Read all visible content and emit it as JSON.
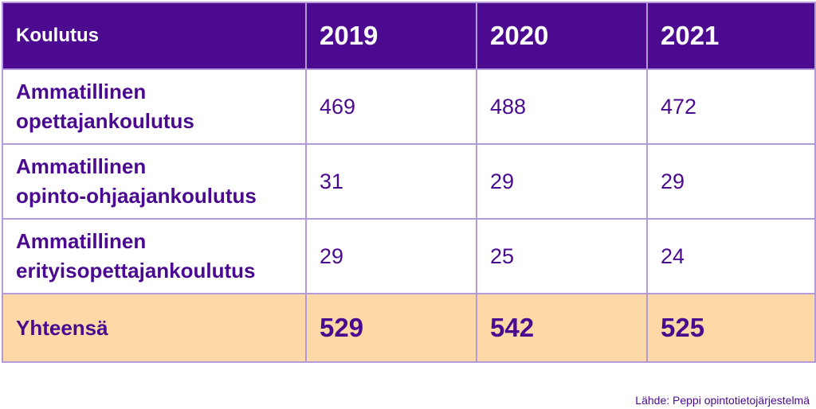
{
  "chart_data": {
    "type": "table",
    "columns": [
      "Koulutus",
      "2019",
      "2020",
      "2021"
    ],
    "rows": [
      {
        "label_line1": "Ammatillinen",
        "label_line2": "opettajankoulutus",
        "values": [
          "469",
          "488",
          "472"
        ]
      },
      {
        "label_line1": "Ammatillinen",
        "label_line2": "opinto-ohjaajankoulutus",
        "values": [
          "31",
          "29",
          "29"
        ]
      },
      {
        "label_line1": "Ammatillinen",
        "label_line2": "erityisopettajankoulutus",
        "values": [
          "29",
          "25",
          "24"
        ]
      }
    ],
    "total": {
      "label": "Yhteensä",
      "values": [
        "529",
        "542",
        "525"
      ]
    },
    "source": "Lähde: Peppi opintotietojärjestelmä",
    "colors": {
      "header_bg": "#4b0a90",
      "header_text": "#ffffff",
      "body_text": "#4a0a8f",
      "grid": "#b49ad6",
      "total_bg": "#fcd9a6"
    }
  }
}
